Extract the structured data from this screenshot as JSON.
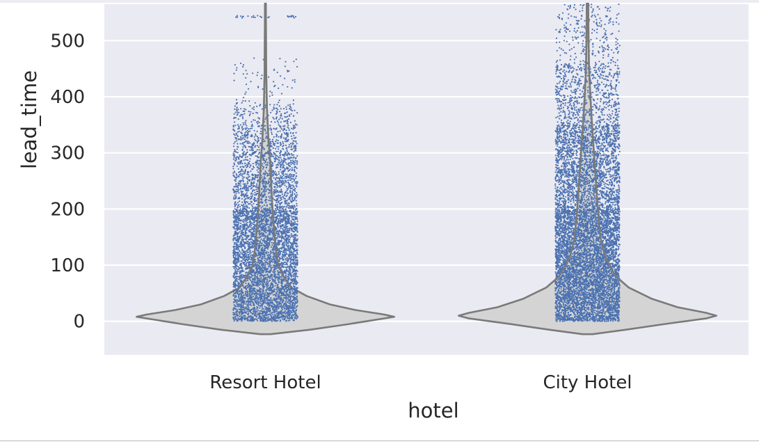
{
  "chart_data": {
    "type": "violin",
    "overlay": "strip",
    "title": "",
    "xlabel": "hotel",
    "ylabel": "lead_time",
    "categories": [
      "Resort Hotel",
      "City Hotel"
    ],
    "ylim": [
      -60,
      565
    ],
    "yticks": [
      0,
      100,
      200,
      300,
      400,
      500
    ],
    "grid": true,
    "legend": "none",
    "colors": {
      "background": "#eaeaf2",
      "grid": "#ffffff",
      "violin_fill": "#d4d4d4",
      "violin_edge": "#7a7a7a",
      "points": "#4c72b0"
    },
    "violins": [
      {
        "category": "Resort Hotel",
        "y_range": [
          -23,
          737
        ],
        "density": [
          {
            "y": -23,
            "w": 0.04
          },
          {
            "y": -15,
            "w": 0.35
          },
          {
            "y": -5,
            "w": 0.65
          },
          {
            "y": 5,
            "w": 0.92
          },
          {
            "y": 8,
            "w": 1.0
          },
          {
            "y": 12,
            "w": 0.92
          },
          {
            "y": 20,
            "w": 0.7
          },
          {
            "y": 30,
            "w": 0.5
          },
          {
            "y": 45,
            "w": 0.32
          },
          {
            "y": 60,
            "w": 0.2
          },
          {
            "y": 80,
            "w": 0.14
          },
          {
            "y": 100,
            "w": 0.1
          },
          {
            "y": 130,
            "w": 0.08
          },
          {
            "y": 170,
            "w": 0.065
          },
          {
            "y": 220,
            "w": 0.05
          },
          {
            "y": 280,
            "w": 0.038
          },
          {
            "y": 330,
            "w": 0.022
          },
          {
            "y": 380,
            "w": 0.012
          },
          {
            "y": 450,
            "w": 0.006
          },
          {
            "y": 550,
            "w": 0.004
          },
          {
            "y": 737,
            "w": 0.001
          }
        ],
        "strip_bands": [
          {
            "from": 0,
            "to": 200,
            "count": 4200
          },
          {
            "from": 200,
            "to": 300,
            "count": 1100
          },
          {
            "from": 300,
            "to": 350,
            "count": 380
          },
          {
            "from": 350,
            "to": 390,
            "count": 150
          },
          {
            "from": 390,
            "to": 470,
            "count": 70
          },
          {
            "from": 540,
            "to": 545,
            "count": 30
          }
        ]
      },
      {
        "category": "City Hotel",
        "y_range": [
          -23,
          629
        ],
        "density": [
          {
            "y": -23,
            "w": 0.04
          },
          {
            "y": -15,
            "w": 0.3
          },
          {
            "y": -5,
            "w": 0.6
          },
          {
            "y": 5,
            "w": 0.92
          },
          {
            "y": 10,
            "w": 1.0
          },
          {
            "y": 15,
            "w": 0.92
          },
          {
            "y": 25,
            "w": 0.7
          },
          {
            "y": 40,
            "w": 0.5
          },
          {
            "y": 60,
            "w": 0.32
          },
          {
            "y": 80,
            "w": 0.22
          },
          {
            "y": 100,
            "w": 0.17
          },
          {
            "y": 120,
            "w": 0.13
          },
          {
            "y": 150,
            "w": 0.1
          },
          {
            "y": 200,
            "w": 0.08
          },
          {
            "y": 250,
            "w": 0.065
          },
          {
            "y": 300,
            "w": 0.05
          },
          {
            "y": 350,
            "w": 0.035
          },
          {
            "y": 400,
            "w": 0.022
          },
          {
            "y": 450,
            "w": 0.012
          },
          {
            "y": 500,
            "w": 0.008
          },
          {
            "y": 629,
            "w": 0.003
          }
        ],
        "strip_bands": [
          {
            "from": 0,
            "to": 200,
            "count": 5200
          },
          {
            "from": 200,
            "to": 350,
            "count": 2200
          },
          {
            "from": 350,
            "to": 460,
            "count": 700
          },
          {
            "from": 460,
            "to": 565,
            "count": 260
          }
        ]
      }
    ]
  }
}
